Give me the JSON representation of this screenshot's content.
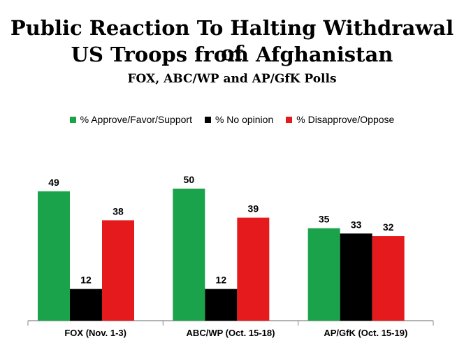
{
  "title_line1": "Public Reaction To Halting Withdrawal of",
  "title_line2": "US Troops from Afghanistan",
  "subtitle": "FOX, ABC/WP and AP/GfK Polls",
  "chart_data": {
    "type": "bar",
    "title": "Public Reaction To Halting Withdrawal of US Troops from Afghanistan",
    "subtitle": "FOX, ABC/WP and AP/GfK Polls",
    "categories": [
      "FOX (Nov. 1-3)",
      "ABC/WP (Oct. 15-18)",
      "AP/GfK (Oct. 15-19)"
    ],
    "series": [
      {
        "name": "% Approve/Favor/Support",
        "color": "#1aa34a",
        "values": [
          49,
          50,
          35
        ]
      },
      {
        "name": "% No opinion",
        "color": "#000000",
        "values": [
          12,
          12,
          33
        ]
      },
      {
        "name": "% Disapprove/Oppose",
        "color": "#e41a1c",
        "values": [
          38,
          39,
          32
        ]
      }
    ],
    "data_labels": true,
    "ylim": [
      0,
      50
    ],
    "grid": false,
    "legend_position": "top"
  }
}
